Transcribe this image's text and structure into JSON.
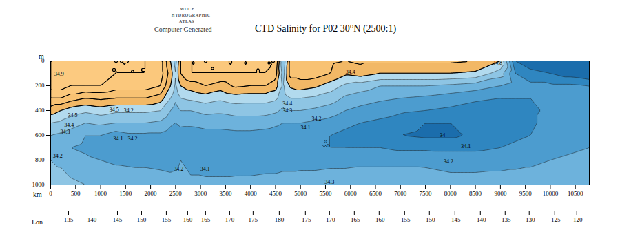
{
  "chart_data": {
    "type": "contour",
    "title": "CTD Salinity for P02 30°N (2500:1)",
    "atlas_lines": [
      "WOCE",
      "HYDROGRAPHIC",
      "ATLAS"
    ],
    "subtitle": "Computer Generated",
    "xlabel": "km",
    "ylabel": "m",
    "xlim": [
      0,
      10780
    ],
    "xticks": [
      0,
      500,
      1000,
      1500,
      2000,
      2500,
      3000,
      3500,
      4000,
      4500,
      5000,
      5500,
      6000,
      6500,
      7000,
      7500,
      8000,
      8500,
      9000,
      9500,
      10000,
      10500
    ],
    "ylim": [
      0,
      1000
    ],
    "yticks": [
      0,
      200,
      400,
      600,
      800,
      1000
    ],
    "lon_axis": {
      "label": "Lon",
      "ticks": [
        {
          "km": 358,
          "lon": 135
        },
        {
          "km": 827,
          "lon": 140
        },
        {
          "km": 1337,
          "lon": 145
        },
        {
          "km": 1819,
          "lon": 150
        },
        {
          "km": 2315,
          "lon": 155
        },
        {
          "km": 2742,
          "lon": 160
        },
        {
          "km": 3100,
          "lon": 165
        },
        {
          "km": 3583,
          "lon": 170
        },
        {
          "km": 4051,
          "lon": 175
        },
        {
          "km": 4575,
          "lon": 180
        },
        {
          "km": 5098,
          "lon": -175
        },
        {
          "km": 5581,
          "lon": -170
        },
        {
          "km": 6077,
          "lon": -165
        },
        {
          "km": 6573,
          "lon": -160
        },
        {
          "km": 7083,
          "lon": -155
        },
        {
          "km": 7579,
          "lon": -150
        },
        {
          "km": 8089,
          "lon": -145
        },
        {
          "km": 8599,
          "lon": -140
        },
        {
          "km": 9095,
          "lon": -135
        },
        {
          "km": 9577,
          "lon": -130
        },
        {
          "km": 10087,
          "lon": -125
        },
        {
          "km": 10528,
          "lon": -120
        }
      ]
    },
    "color_levels": [
      34.0,
      34.1,
      34.2,
      34.3,
      34.4,
      34.5,
      34.6,
      34.7,
      34.8
    ],
    "colors": [
      "#1b6dac",
      "#2f86c0",
      "#4c9ccf",
      "#6db2dc",
      "#8ec5e4",
      "#b2daee",
      "#f2b866",
      "#f8c273",
      "#fbc87c",
      "#fcca80"
    ],
    "salinity": {
      "x_km": [
        0,
        200,
        400,
        700,
        1000,
        1300,
        1600,
        1900,
        2200,
        2400,
        2500,
        2600,
        2800,
        3100,
        3400,
        3700,
        4000,
        4300,
        4500,
        4650,
        4800,
        5000,
        5300,
        5600,
        5900,
        6200,
        6600,
        7000,
        7500,
        8000,
        8500,
        9000,
        9300,
        9600,
        10000,
        10400,
        10780
      ],
      "depth_m": [
        0,
        100,
        200,
        300,
        400,
        500,
        600,
        700,
        800,
        1000
      ],
      "values": [
        [
          34.9,
          34.9,
          34.85,
          34.7,
          34.55,
          34.4,
          34.3,
          34.25,
          34.3,
          34.35
        ],
        [
          34.9,
          34.9,
          34.85,
          34.7,
          34.5,
          34.38,
          34.28,
          34.22,
          34.28,
          34.35
        ],
        [
          34.9,
          34.9,
          34.8,
          34.65,
          34.45,
          34.35,
          34.25,
          34.2,
          34.25,
          34.32
        ],
        [
          34.85,
          34.85,
          34.8,
          34.6,
          34.42,
          34.3,
          34.2,
          34.18,
          34.22,
          34.3
        ],
        [
          34.8,
          34.85,
          34.8,
          34.62,
          34.45,
          34.32,
          34.2,
          34.15,
          34.2,
          34.3
        ],
        [
          34.8,
          34.8,
          34.75,
          34.6,
          34.42,
          34.3,
          34.15,
          34.12,
          34.18,
          34.28
        ],
        [
          34.8,
          34.8,
          34.75,
          34.6,
          34.42,
          34.3,
          34.18,
          34.12,
          34.17,
          34.28
        ],
        [
          34.8,
          34.8,
          34.75,
          34.6,
          34.42,
          34.3,
          34.18,
          34.12,
          34.17,
          34.27
        ],
        [
          34.75,
          34.75,
          34.7,
          34.55,
          34.4,
          34.28,
          34.18,
          34.12,
          34.16,
          34.26
        ],
        [
          34.5,
          34.55,
          34.5,
          34.4,
          34.3,
          34.22,
          34.15,
          34.12,
          34.15,
          34.25
        ],
        [
          34.35,
          34.4,
          34.38,
          34.32,
          34.25,
          34.2,
          34.15,
          34.14,
          34.16,
          34.25
        ],
        [
          34.6,
          34.6,
          34.5,
          34.4,
          34.3,
          34.22,
          34.16,
          34.17,
          34.2,
          34.26
        ],
        [
          34.7,
          34.7,
          34.55,
          34.42,
          34.3,
          34.22,
          34.15,
          34.12,
          34.14,
          34.24
        ],
        [
          34.7,
          34.7,
          34.6,
          34.45,
          34.33,
          34.24,
          34.16,
          34.1,
          34.12,
          34.24
        ],
        [
          34.7,
          34.7,
          34.55,
          34.42,
          34.32,
          34.24,
          34.16,
          34.1,
          34.12,
          34.24
        ],
        [
          34.7,
          34.7,
          34.62,
          34.45,
          34.34,
          34.25,
          34.17,
          34.12,
          34.13,
          34.24
        ],
        [
          34.7,
          34.7,
          34.6,
          34.44,
          34.34,
          34.25,
          34.17,
          34.12,
          34.13,
          34.24
        ],
        [
          34.7,
          34.7,
          34.6,
          34.44,
          34.34,
          34.24,
          34.16,
          34.12,
          34.14,
          34.25
        ],
        [
          34.7,
          34.65,
          34.55,
          34.42,
          34.32,
          34.22,
          34.15,
          34.12,
          34.14,
          34.25
        ],
        [
          34.3,
          34.35,
          34.38,
          34.35,
          34.28,
          34.2,
          34.14,
          34.12,
          34.15,
          34.26
        ],
        [
          34.65,
          34.65,
          34.52,
          34.4,
          34.3,
          34.2,
          34.13,
          34.11,
          34.15,
          34.26
        ],
        [
          34.65,
          34.65,
          34.55,
          34.4,
          34.3,
          34.2,
          34.12,
          34.1,
          34.15,
          34.27
        ],
        [
          34.65,
          34.65,
          34.52,
          34.38,
          34.28,
          34.18,
          34.12,
          34.1,
          34.15,
          34.27
        ],
        [
          34.62,
          34.6,
          34.45,
          34.35,
          34.25,
          34.16,
          34.1,
          34.1,
          34.16,
          34.28
        ],
        [
          34.6,
          34.52,
          34.38,
          34.28,
          34.2,
          34.12,
          34.08,
          34.1,
          34.16,
          34.28
        ],
        [
          34.62,
          34.55,
          34.35,
          34.25,
          34.17,
          34.1,
          34.06,
          34.1,
          34.17,
          34.28
        ],
        [
          34.62,
          34.5,
          34.3,
          34.22,
          34.14,
          34.08,
          34.05,
          34.1,
          34.17,
          34.28
        ],
        [
          34.62,
          34.5,
          34.3,
          34.2,
          34.12,
          34.04,
          34.0,
          34.08,
          34.17,
          34.28
        ],
        [
          34.62,
          34.5,
          34.3,
          34.18,
          34.1,
          34.0,
          33.98,
          34.08,
          34.17,
          34.27
        ],
        [
          34.62,
          34.5,
          34.28,
          34.15,
          34.08,
          34.0,
          33.98,
          34.08,
          34.15,
          34.25
        ],
        [
          34.6,
          34.48,
          34.25,
          34.12,
          34.05,
          34.02,
          34.02,
          34.08,
          34.15,
          34.25
        ],
        [
          34.5,
          34.35,
          34.2,
          34.1,
          34.05,
          34.04,
          34.06,
          34.1,
          34.16,
          34.25
        ],
        [
          34.0,
          34.1,
          34.15,
          34.1,
          34.08,
          34.07,
          34.08,
          34.12,
          34.17,
          34.25
        ],
        [
          33.9,
          34.05,
          34.12,
          34.1,
          34.09,
          34.09,
          34.1,
          34.14,
          34.18,
          34.25
        ],
        [
          33.8,
          34.0,
          34.12,
          34.12,
          34.11,
          34.12,
          34.14,
          34.16,
          34.2,
          34.26
        ],
        [
          33.7,
          33.95,
          34.12,
          34.14,
          34.14,
          34.14,
          34.16,
          34.18,
          34.22,
          34.27
        ],
        [
          33.6,
          33.9,
          34.1,
          34.14,
          34.15,
          34.16,
          34.18,
          34.2,
          34.23,
          34.28
        ]
      ]
    },
    "annotations": [
      {
        "x": 170,
        "y": 105,
        "label": "34.9"
      },
      {
        "x": 440,
        "y": 440,
        "label": "34.5"
      },
      {
        "x": 370,
        "y": 515,
        "label": "34.4"
      },
      {
        "x": 290,
        "y": 570,
        "label": "34.3"
      },
      {
        "x": 1270,
        "y": 395,
        "label": "34.5"
      },
      {
        "x": 1560,
        "y": 400,
        "label": "34.2"
      },
      {
        "x": 1350,
        "y": 630,
        "label": "34.1"
      },
      {
        "x": 1640,
        "y": 630,
        "label": "34.2"
      },
      {
        "x": 140,
        "y": 765,
        "label": "34.2"
      },
      {
        "x": 2560,
        "y": 870,
        "label": "34.2"
      },
      {
        "x": 3090,
        "y": 870,
        "label": "34.1"
      },
      {
        "x": 4740,
        "y": 345,
        "label": "34.4"
      },
      {
        "x": 4740,
        "y": 400,
        "label": "34.3"
      },
      {
        "x": 5100,
        "y": 540,
        "label": "34.1"
      },
      {
        "x": 5320,
        "y": 465,
        "label": "34.2"
      },
      {
        "x": 6000,
        "y": 90,
        "label": "34.4"
      },
      {
        "x": 5580,
        "y": 975,
        "label": "34.3"
      },
      {
        "x": 7840,
        "y": 600,
        "label": "34"
      },
      {
        "x": 8310,
        "y": 690,
        "label": "34.1"
      },
      {
        "x": 7960,
        "y": 810,
        "label": "34.2"
      },
      {
        "x": 8940,
        "y": 15,
        "label": "34.8"
      }
    ]
  }
}
